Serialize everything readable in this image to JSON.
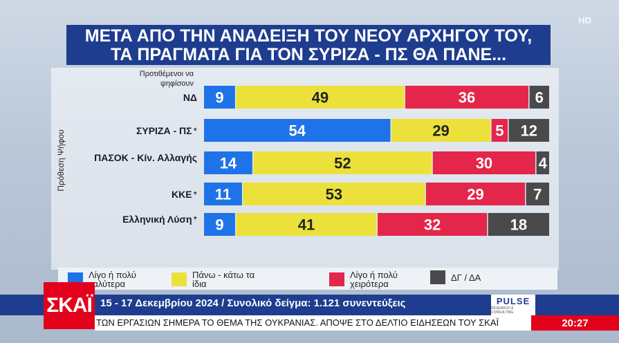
{
  "hd_label": "HD",
  "title_lines": [
    "ΜΕΤΑ ΑΠΟ ΤΗΝ ΑΝΑΔΕΙΞΗ ΤΟΥ ΝΕΟΥ ΑΡΧΗΓΟΥ ΤΟΥ,",
    "ΤΑ ΠΡΑΓΜΑΤΑ ΓΙΑ ΤΟΝ ΣΥΡΙΖΑ - ΠΣ ΘΑ ΠΑΝΕ..."
  ],
  "column_header": "Προτιθέμενοι να ψηφίσουν",
  "y_axis_label": "Πρόθεση Ψήφου",
  "chart_data": {
    "type": "bar",
    "orientation": "horizontal",
    "stacked": true,
    "categories": [
      {
        "label": "ΝΔ",
        "star": ""
      },
      {
        "label": "ΣΥΡΙΖΑ - ΠΣ",
        "star": "*"
      },
      {
        "label": "ΠΑΣΟΚ - Κίν. Αλλαγής",
        "star": ""
      },
      {
        "label": "ΚΚΕ",
        "star": "*"
      },
      {
        "label": "Ελληνική Λύση",
        "star": "*"
      }
    ],
    "series": [
      {
        "name": "Λίγο ή πολύ καλύτερα",
        "color": "#1e73e8",
        "values": [
          9,
          54,
          14,
          11,
          9
        ]
      },
      {
        "name": "Πάνω - κάτω τα ίδια",
        "color": "#ece13a",
        "values": [
          49,
          29,
          52,
          53,
          41
        ]
      },
      {
        "name": "Λίγο ή πολύ χειρότερα",
        "color": "#e4264a",
        "values": [
          36,
          5,
          30,
          29,
          32
        ]
      },
      {
        "name": "ΔΓ / ΔΑ",
        "color": "#4a4a4a",
        "values": [
          6,
          12,
          4,
          7,
          18
        ]
      }
    ],
    "xlim": [
      0,
      100
    ],
    "legend_position": "bottom"
  },
  "footer": {
    "channel_logo": "ΣΚΑΪ",
    "survey_info": "15 - 17 Δεκεμβρίου 2024 / Συνολικό δείγμα: 1.121 συνεντεύξεις",
    "pollster": "PULSE",
    "pollster_sub": "RESEARCH & CONSULTING",
    "ticker": "ΤΩΝ ΕΡΓΑΣΙΩΝ ΣΗΜΕΡΑ ΤΟ ΘΕΜΑ ΤΗΣ ΟΥΚΡΑΝΙΑΣ.   ΑΠΟΨΕ ΣΤΟ ΔΕΛΤΙΟ ΕΙΔΗΣΕΩΝ ΤΟΥ ΣΚΑΪ",
    "clock": "20:27"
  }
}
